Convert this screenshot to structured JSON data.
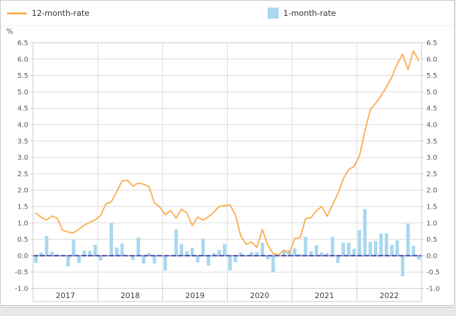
{
  "legend": {
    "items": [
      {
        "label": "12-month-rate",
        "swatch": "line",
        "color": "#FBB157"
      },
      {
        "label": "1-month-rate",
        "swatch": "square",
        "color": "#A9D8F0"
      }
    ]
  },
  "axes": {
    "unit_label": "%",
    "y_tick_labels": [
      "6.5",
      "6.0",
      "5.5",
      "5.0",
      "4.5",
      "4.0",
      "3.5",
      "3.0",
      "2.5",
      "2.0",
      "1.5",
      "1.0",
      "0.5",
      "0.0",
      "-0.5",
      "-1.0"
    ],
    "x_year_labels": [
      "2017",
      "2018",
      "2019",
      "2020",
      "2021",
      "2022"
    ]
  },
  "colors": {
    "line_series": "#FBB157",
    "bar_series": "#A9D8F0",
    "grid": "#dcdcdc",
    "plot_border": "#c9c9c9",
    "zero_line_dark": "#2E3192",
    "zero_line_light": "#8C9BD6",
    "tick_text": "#595959",
    "year_text": "#404040"
  },
  "chart_data": {
    "type": "combo",
    "title": "",
    "ylabel": "%",
    "ylim": [
      -1.0,
      6.5
    ],
    "ytick_step": 0.5,
    "grid": true,
    "legend_position": "top",
    "x": [
      "2017-01",
      "2017-02",
      "2017-03",
      "2017-04",
      "2017-05",
      "2017-06",
      "2017-07",
      "2017-08",
      "2017-09",
      "2017-10",
      "2017-11",
      "2017-12",
      "2018-01",
      "2018-02",
      "2018-03",
      "2018-04",
      "2018-05",
      "2018-06",
      "2018-07",
      "2018-08",
      "2018-09",
      "2018-10",
      "2018-11",
      "2018-12",
      "2019-01",
      "2019-02",
      "2019-03",
      "2019-04",
      "2019-05",
      "2019-06",
      "2019-07",
      "2019-08",
      "2019-09",
      "2019-10",
      "2019-11",
      "2019-12",
      "2020-01",
      "2020-02",
      "2020-03",
      "2020-04",
      "2020-05",
      "2020-06",
      "2020-07",
      "2020-08",
      "2020-09",
      "2020-10",
      "2020-11",
      "2020-12",
      "2021-01",
      "2021-02",
      "2021-03",
      "2021-04",
      "2021-05",
      "2021-06",
      "2021-07",
      "2021-08",
      "2021-09",
      "2021-10",
      "2021-11",
      "2021-12",
      "2022-01",
      "2022-02",
      "2022-03",
      "2022-04",
      "2022-05",
      "2022-06",
      "2022-07",
      "2022-08",
      "2022-09",
      "2022-10",
      "2022-11",
      "2022-12"
    ],
    "series": [
      {
        "name": "12-month-rate",
        "type": "line",
        "color": "#FBB157",
        "values": [
          1.3,
          1.17,
          1.09,
          1.21,
          1.14,
          0.77,
          0.72,
          0.7,
          0.81,
          0.93,
          1.02,
          1.09,
          1.22,
          1.58,
          1.65,
          1.95,
          2.28,
          2.3,
          2.12,
          2.22,
          2.18,
          2.1,
          1.61,
          1.48,
          1.25,
          1.38,
          1.15,
          1.42,
          1.3,
          0.92,
          1.18,
          1.08,
          1.19,
          1.33,
          1.5,
          1.53,
          1.55,
          1.25,
          0.6,
          0.35,
          0.42,
          0.25,
          0.8,
          0.32,
          0.06,
          0.03,
          0.17,
          0.07,
          0.53,
          0.55,
          1.13,
          1.16,
          1.37,
          1.5,
          1.2,
          1.55,
          1.9,
          2.35,
          2.63,
          2.72,
          3.05,
          3.8,
          4.45,
          4.65,
          4.88,
          5.15,
          5.45,
          5.85,
          6.15,
          5.68,
          6.25,
          5.95
        ]
      },
      {
        "name": "1-month-rate",
        "type": "bar",
        "color": "#A9D8F0",
        "values": [
          -0.22,
          0.1,
          0.6,
          0.12,
          0.04,
          0.02,
          -0.33,
          0.48,
          -0.22,
          0.15,
          0.15,
          0.33,
          -0.15,
          0.02,
          1.0,
          0.25,
          0.37,
          0.02,
          -0.13,
          0.55,
          -0.24,
          0.08,
          -0.24,
          0.02,
          -0.45,
          0.02,
          0.8,
          0.36,
          0.13,
          0.24,
          -0.2,
          0.52,
          -0.31,
          0.08,
          0.18,
          0.36,
          -0.45,
          -0.2,
          0.1,
          0.02,
          0.11,
          0.11,
          0.4,
          -0.11,
          -0.51,
          0.02,
          0.17,
          0.17,
          0.22,
          0.05,
          0.57,
          0.14,
          0.32,
          0.1,
          0.08,
          0.57,
          -0.22,
          0.4,
          0.4,
          0.21,
          0.78,
          1.42,
          0.42,
          0.45,
          0.68,
          0.68,
          0.33,
          0.47,
          -0.63,
          0.98,
          0.3,
          -0.12
        ]
      }
    ]
  }
}
